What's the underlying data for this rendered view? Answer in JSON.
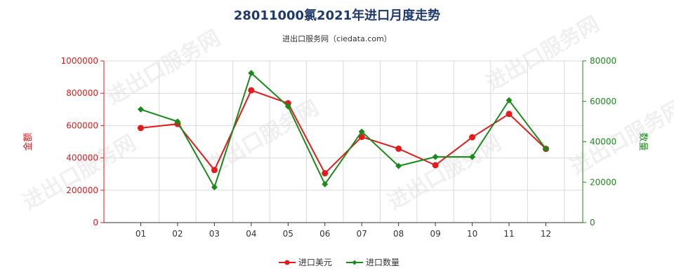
{
  "chart_data": {
    "type": "line",
    "title": "28011000氯2021年进口月度走势",
    "subtitle": "进出口服务网（ciedata.com）",
    "categories": [
      "01",
      "02",
      "03",
      "04",
      "05",
      "06",
      "07",
      "08",
      "09",
      "10",
      "11",
      "12"
    ],
    "y_left": {
      "label": "金额",
      "ticks": [
        "0",
        "200000",
        "400000",
        "600000",
        "800000",
        "1000000"
      ],
      "range": [
        0,
        1000000
      ]
    },
    "y_right": {
      "label": "数量",
      "ticks": [
        "0",
        "20000",
        "40000",
        "60000",
        "80000"
      ],
      "range": [
        0,
        80000
      ]
    },
    "series": [
      {
        "name": "进口美元",
        "axis": "left",
        "color": "#e41a1c",
        "values": [
          585000,
          610000,
          325000,
          818000,
          738000,
          305000,
          530000,
          457000,
          355000,
          528000,
          672000,
          456000
        ]
      },
      {
        "name": "进口数量",
        "axis": "right",
        "color": "#1a8a1a",
        "values": [
          56000,
          50000,
          17500,
          74000,
          57500,
          19000,
          45000,
          28000,
          32500,
          32500,
          60500,
          36500
        ]
      }
    ],
    "grid": true,
    "legend": "bottom-center",
    "watermark": "进出口服务网"
  }
}
